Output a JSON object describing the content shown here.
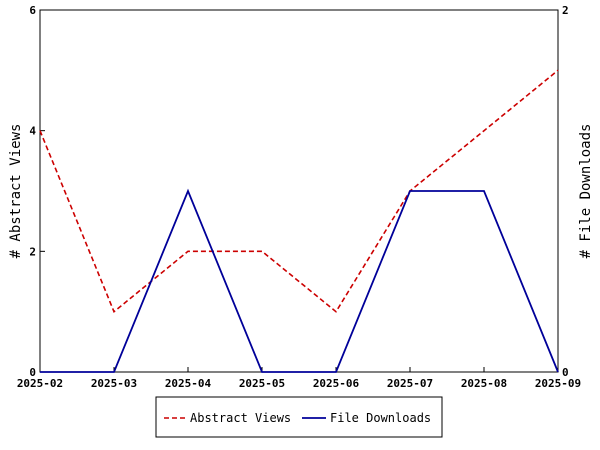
{
  "chart_data": {
    "type": "line",
    "categories": [
      "2025-02",
      "2025-03",
      "2025-04",
      "2025-05",
      "2025-06",
      "2025-07",
      "2025-08",
      "2025-09"
    ],
    "series": [
      {
        "name": "Abstract Views",
        "axis": "left",
        "color": "#cc0000",
        "dash": "dashed",
        "values": [
          4,
          1,
          2,
          2,
          1,
          3,
          4,
          5
        ]
      },
      {
        "name": "File Downloads",
        "axis": "right",
        "color": "#000099",
        "dash": "solid",
        "values": [
          0,
          0,
          1,
          0,
          0,
          1,
          1,
          0
        ]
      }
    ],
    "ylabel_left": "# Abstract Views",
    "ylabel_right": "# File Downloads",
    "ylim_left": [
      0,
      6
    ],
    "yticks_left": [
      "0",
      "2",
      "4",
      "6"
    ],
    "ylim_right": [
      0,
      2
    ],
    "yticks_right": [
      "0",
      "2"
    ],
    "grid": false,
    "legend_position": "bottom"
  }
}
